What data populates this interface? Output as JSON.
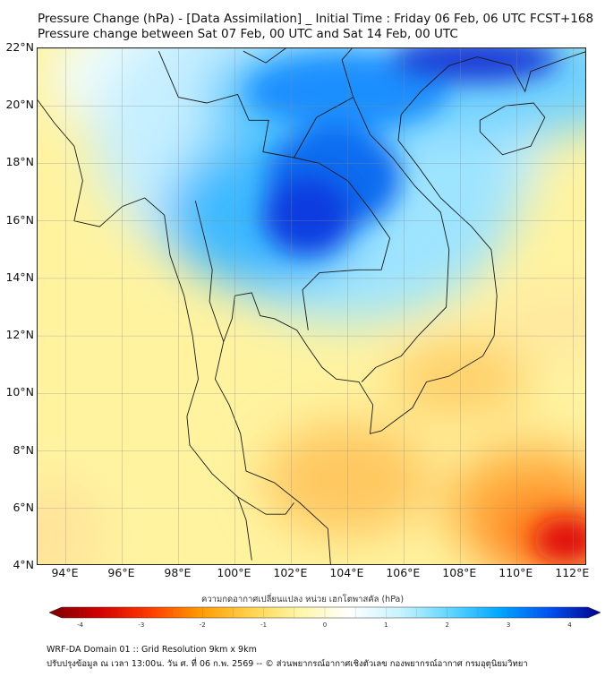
{
  "header": {
    "title_line1": "Pressure Change (hPa) - [Data Assimilation] _ Initial Time : Friday 06 Feb, 06 UTC FCST+168",
    "title_line2": "Pressure change between Sat 07 Feb, 00 UTC and Sat 14 Feb, 00 UTC"
  },
  "map": {
    "lat_labels": [
      "22°N",
      "20°N",
      "18°N",
      "16°N",
      "14°N",
      "12°N",
      "10°N",
      "8°N",
      "6°N",
      "4°N"
    ],
    "lon_labels": [
      "94°E",
      "96°E",
      "98°E",
      "100°E",
      "102°E",
      "104°E",
      "106°E",
      "108°E",
      "110°E",
      "112°E"
    ],
    "lat_range": [
      4,
      22
    ],
    "lon_range": [
      93,
      112.5
    ],
    "gridlines": true,
    "features": [
      {
        "type": "low-center",
        "lon": 102.5,
        "lat": 16.5,
        "value": 4.5
      },
      {
        "type": "low-arm",
        "lon": 104.5,
        "lat": 20.5,
        "value": 3.8
      },
      {
        "type": "low-arm",
        "lon": 109.5,
        "lat": 21.5,
        "value": 3.5
      },
      {
        "type": "high-center",
        "lon": 111.5,
        "lat": 4.8,
        "value": -4.2
      },
      {
        "type": "high-arm",
        "lon": 107.5,
        "lat": 10.5,
        "value": -1.6
      }
    ]
  },
  "colorbar": {
    "title": "ความกดอากาศเปลี่ยนแปลง หน่วย เฮกโตพาสคัล (hPa)",
    "ticks": [
      "-4",
      "-3",
      "-2",
      "-1",
      "0",
      "1",
      "2",
      "3",
      "4"
    ],
    "range": [
      -4.3,
      4.3
    ],
    "colors": [
      "#7a0000",
      "#d10000",
      "#ff3a00",
      "#ff9a00",
      "#ffd24a",
      "#fff7a6",
      "#ffffff",
      "#c8f3ff",
      "#5fd6ff",
      "#00a6ff",
      "#0050f0",
      "#00008a"
    ]
  },
  "footer": {
    "line1": "WRF-DA Domain 01 :: Grid Resolution 9km x 9km",
    "line2": "ปรับปรุงข้อมูล ณ เวลา 13:00น. วัน ศ. ที่ 06 ก.พ. 2569 -- © ส่วนพยากรณ์อากาศเชิงตัวเลข กองพยากรณ์อากาศ กรมอุตุนิยมวิทยา"
  }
}
